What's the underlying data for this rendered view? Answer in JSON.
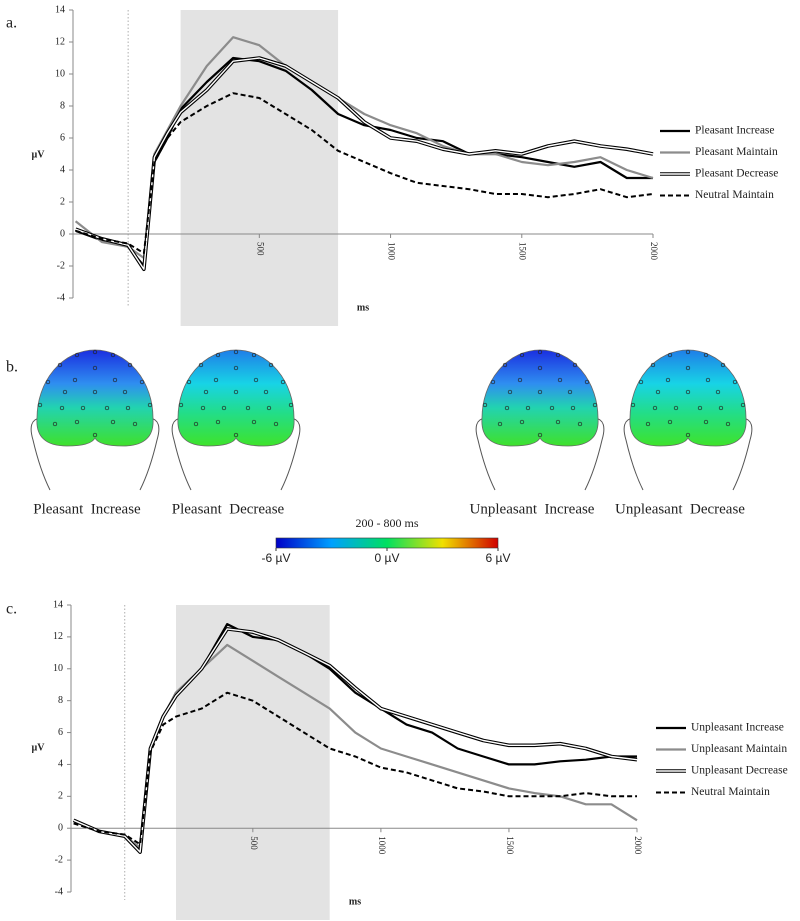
{
  "panels": [
    "a.",
    "b.",
    "c."
  ],
  "chart_data": [
    {
      "type": "line",
      "y_label": "µV",
      "x_label": "ms",
      "x": [
        -200,
        -100,
        0,
        60,
        100,
        150,
        200,
        300,
        400,
        500,
        600,
        700,
        800,
        900,
        1000,
        1100,
        1200,
        1300,
        1400,
        1500,
        1600,
        1700,
        1800,
        1900,
        2000
      ],
      "xlim": [
        -210,
        2000
      ],
      "xticks": [
        500,
        1000,
        1500,
        2000
      ],
      "ylim": [
        -4,
        14
      ],
      "yticks": [
        -4,
        -2,
        0,
        2,
        4,
        6,
        8,
        10,
        12,
        14
      ],
      "highlight_range": [
        200,
        800
      ],
      "marker_line": 0,
      "series": [
        {
          "name": "Pleasant Increase",
          "color": "#000000",
          "style": "solid",
          "values": [
            0.2,
            -0.4,
            -0.8,
            -2.0,
            4.5,
            6,
            7.8,
            9.5,
            11,
            10.8,
            10.2,
            9,
            7.5,
            6.8,
            6.5,
            6,
            5.8,
            5,
            5,
            4.8,
            4.5,
            4.2,
            4.5,
            3.5,
            3.5
          ]
        },
        {
          "name": "Pleasant Maintain",
          "color": "#8c8c8c",
          "style": "solid",
          "values": [
            0.8,
            -0.5,
            -0.8,
            -1.5,
            5,
            6.5,
            8,
            10.5,
            12.3,
            11.8,
            10.5,
            9.5,
            8.5,
            7.5,
            6.8,
            6.3,
            5.5,
            5,
            5,
            4.5,
            4.3,
            4.5,
            4.8,
            4,
            3.5
          ]
        },
        {
          "name": "Pleasant Decrease",
          "color": "#000000",
          "style": "double",
          "values": [
            0.3,
            -0.3,
            -0.7,
            -2.2,
            4.8,
            6.3,
            7.6,
            9,
            10.8,
            11,
            10.5,
            9.5,
            8.5,
            7,
            6,
            5.8,
            5.3,
            5,
            5.2,
            5,
            5.5,
            5.8,
            5.5,
            5.3,
            5
          ]
        },
        {
          "name": "Neutral Maintain",
          "color": "#000000",
          "style": "dashed",
          "values": [
            0.2,
            -0.3,
            -0.6,
            -1.2,
            4.5,
            6,
            7,
            8,
            8.8,
            8.5,
            7.5,
            6.5,
            5.2,
            4.5,
            3.8,
            3.2,
            3,
            2.8,
            2.5,
            2.5,
            2.3,
            2.5,
            2.8,
            2.3,
            2.5
          ]
        }
      ]
    },
    {
      "type": "line",
      "y_label": "µV",
      "x_label": "ms",
      "x": [
        -200,
        -100,
        0,
        60,
        100,
        150,
        200,
        300,
        400,
        500,
        600,
        700,
        800,
        900,
        1000,
        1100,
        1200,
        1300,
        1400,
        1500,
        1600,
        1700,
        1800,
        1900,
        2000
      ],
      "xlim": [
        -210,
        2000
      ],
      "xticks": [
        500,
        1000,
        1500,
        2000
      ],
      "ylim": [
        -4,
        14
      ],
      "yticks": [
        -4,
        -2,
        0,
        2,
        4,
        6,
        8,
        10,
        12,
        14
      ],
      "highlight_range": [
        200,
        800
      ],
      "marker_line": 0,
      "series": [
        {
          "name": "Unpleasant Increase",
          "color": "#000000",
          "style": "solid",
          "values": [
            0.5,
            -0.2,
            -0.5,
            -1.3,
            5,
            7,
            8.5,
            10,
            12.8,
            12,
            11.8,
            11,
            10,
            8.5,
            7.5,
            6.5,
            6,
            5,
            4.5,
            4,
            4,
            4.2,
            4.3,
            4.5,
            4.5
          ]
        },
        {
          "name": "Unpleasant Maintain",
          "color": "#8c8c8c",
          "style": "solid",
          "values": [
            0.5,
            -0.2,
            -0.5,
            -1.2,
            5,
            7,
            8.5,
            10,
            11.5,
            10.5,
            9.5,
            8.5,
            7.5,
            6,
            5,
            4.5,
            4,
            3.5,
            3,
            2.5,
            2.2,
            2,
            1.5,
            1.5,
            0.5
          ]
        },
        {
          "name": "Unpleasant Decrease",
          "color": "#000000",
          "style": "double",
          "values": [
            0.5,
            -0.2,
            -0.5,
            -1.5,
            5,
            7,
            8.3,
            10,
            12.5,
            12.3,
            11.8,
            11,
            10.2,
            8.8,
            7.5,
            7,
            6.5,
            6,
            5.5,
            5.2,
            5.2,
            5.3,
            5,
            4.5,
            4.3
          ]
        },
        {
          "name": "Neutral Maintain",
          "color": "#000000",
          "style": "dashed",
          "values": [
            0.3,
            -0.2,
            -0.4,
            -1,
            4.8,
            6.5,
            7,
            7.5,
            8.5,
            8,
            7,
            6,
            5,
            4.5,
            3.8,
            3.5,
            3,
            2.5,
            2.3,
            2,
            2,
            2,
            2.2,
            2,
            2
          ]
        }
      ]
    }
  ],
  "topomaps": {
    "maps": [
      {
        "label": "Pleasant  Increase",
        "shade": "deep"
      },
      {
        "label": "Pleasant  Decrease",
        "shade": "light"
      },
      {
        "label": "Unpleasant  Increase",
        "shade": "deep"
      },
      {
        "label": "Unpleasant  Decrease",
        "shade": "light"
      }
    ],
    "colorbar": {
      "title": "200 - 800 ms",
      "lim": [
        -6,
        6
      ],
      "ticks": [
        {
          "value": -6,
          "label": "-6 µV"
        },
        {
          "value": 0,
          "label": "0 µV"
        },
        {
          "value": 6,
          "label": "6 µV"
        }
      ]
    }
  }
}
